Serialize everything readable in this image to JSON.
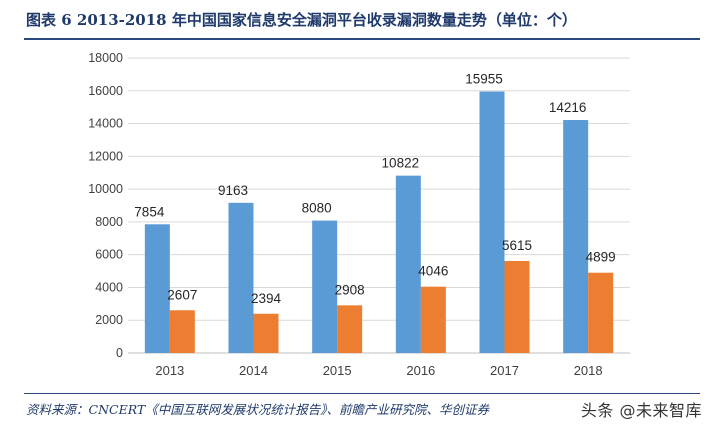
{
  "title": "图表 6   2013-2018 年中国国家信息安全漏洞平台收录漏洞数量走势（单位：个）",
  "source": "资料来源：CNCERT《中国互联网发展状况统计报告》、前瞻产业研究院、华创证券",
  "watermark": "头条 @未来智库",
  "chart_data": {
    "type": "bar",
    "categories": [
      "2013",
      "2014",
      "2015",
      "2016",
      "2017",
      "2018"
    ],
    "series": [
      {
        "name": "",
        "color": "#5b9bd5",
        "values": [
          7854,
          9163,
          8080,
          10822,
          15955,
          14216
        ]
      },
      {
        "name": "",
        "color": "#ed7d31",
        "values": [
          2607,
          2394,
          2908,
          4046,
          5615,
          4899
        ]
      }
    ],
    "ylim": [
      0,
      18000
    ],
    "yticks": [
      0,
      2000,
      4000,
      6000,
      8000,
      10000,
      12000,
      14000,
      16000,
      18000
    ],
    "grid": true,
    "data_labels": true,
    "legend": "none"
  }
}
